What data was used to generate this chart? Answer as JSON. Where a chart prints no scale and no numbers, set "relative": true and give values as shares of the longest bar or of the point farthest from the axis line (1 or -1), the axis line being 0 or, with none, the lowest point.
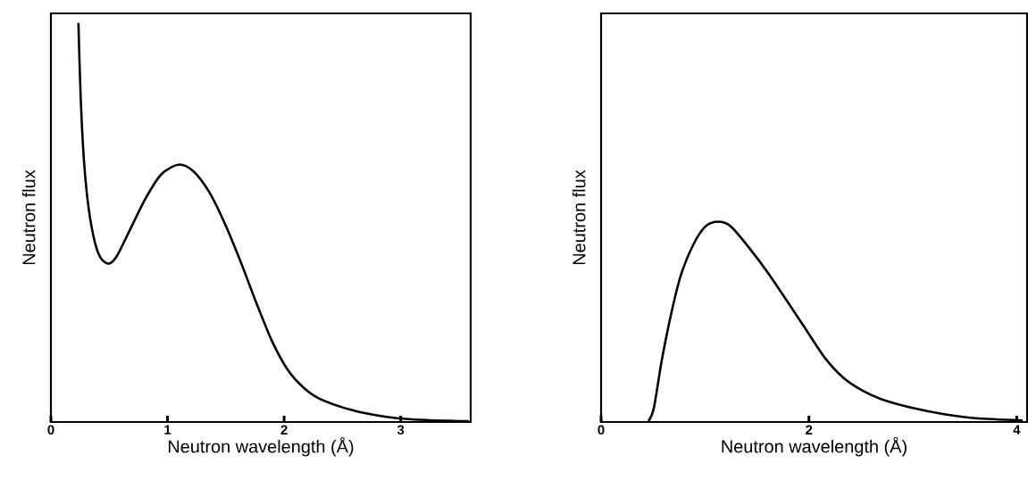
{
  "chart_data": [
    {
      "type": "line",
      "relative": true,
      "xlabel": "Neutron wavelength (Å)",
      "ylabel": "Neutron flux",
      "xlim": [
        0,
        3.6
      ],
      "xticks": [
        0,
        1,
        2,
        3
      ],
      "color": "#000000",
      "marker": "none",
      "line_style": "solid",
      "x": [
        0.236,
        0.255,
        0.283,
        0.323,
        0.378,
        0.432,
        0.5,
        0.568,
        0.677,
        0.813,
        0.948,
        1.098,
        1.22,
        1.356,
        1.492,
        1.628,
        1.764,
        1.899,
        2.035,
        2.171,
        2.307,
        2.579,
        2.851,
        3.122,
        3.394,
        3.584
      ],
      "values": [
        1.0,
        0.816,
        0.657,
        0.537,
        0.449,
        0.409,
        0.397,
        0.417,
        0.481,
        0.561,
        0.621,
        0.645,
        0.629,
        0.577,
        0.497,
        0.401,
        0.297,
        0.201,
        0.129,
        0.085,
        0.058,
        0.03,
        0.014,
        0.006,
        0.003,
        0.002
      ]
    },
    {
      "type": "line",
      "relative": true,
      "xlabel": "Neutron wavelength (Å)",
      "ylabel": "Neutron flux",
      "xlim": [
        0,
        4.1
      ],
      "xticks": [
        0,
        2,
        4
      ],
      "color": "#000000",
      "marker": "none",
      "line_style": "solid",
      "x": [
        0.456,
        0.508,
        0.583,
        0.674,
        0.764,
        0.885,
        1.006,
        1.127,
        1.248,
        1.429,
        1.61,
        1.792,
        1.973,
        2.154,
        2.335,
        2.517,
        2.698,
        3.0,
        3.302,
        3.604,
        4.057
      ],
      "values": [
        0.005,
        0.07,
        0.305,
        0.539,
        0.727,
        0.883,
        0.977,
        1.0,
        0.977,
        0.867,
        0.742,
        0.602,
        0.461,
        0.32,
        0.219,
        0.156,
        0.114,
        0.07,
        0.039,
        0.019,
        0.008
      ]
    }
  ]
}
